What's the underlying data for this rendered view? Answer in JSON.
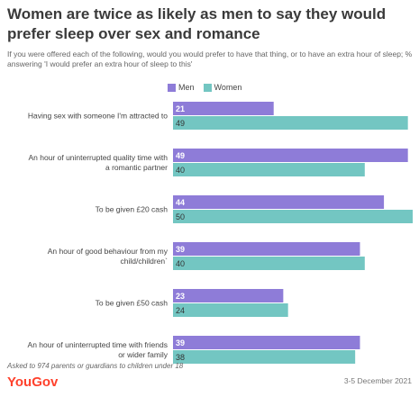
{
  "header": {
    "title": "Women are twice as likely as men to say they would prefer sleep over sex and romance",
    "subtitle": "If you were offered each of the following, would you would prefer to have that thing, or to have an extra hour of sleep; % answering 'I would prefer an extra hour of sleep to this'"
  },
  "chart_data": {
    "type": "bar",
    "orientation": "horizontal",
    "categories": [
      "Having sex with someone I'm attracted to",
      "An hour of uninterrupted quality time with a romantic partner",
      "To be given £20 cash",
      "An hour of good behaviour from my child/children",
      "To be given £50 cash",
      "An hour of uninterrupted time with friends or wider family"
    ],
    "category_lines": [
      [
        "Having sex with someone I'm attracted to"
      ],
      [
        "An hour of uninterrupted quality time with",
        "a romantic partner"
      ],
      [
        "To be given £20 cash"
      ],
      [
        "An hour of good behaviour from my",
        "child/children`"
      ],
      [
        "To be given £50 cash"
      ],
      [
        "An hour of uninterrupted time with friends",
        "or wider family"
      ]
    ],
    "series": [
      {
        "name": "Men",
        "color": "#8e7cd8",
        "values": [
          21,
          49,
          44,
          39,
          23,
          39
        ]
      },
      {
        "name": "Women",
        "color": "#73c6c2",
        "values": [
          49,
          40,
          50,
          40,
          24,
          38
        ]
      }
    ],
    "xlim": [
      0,
      50
    ],
    "grid": false,
    "legend_position": "top"
  },
  "footer": {
    "note": "Asked to 974 parents or guardians to children under 18",
    "brand": "YouGov",
    "date": "3-5 December 2021"
  }
}
